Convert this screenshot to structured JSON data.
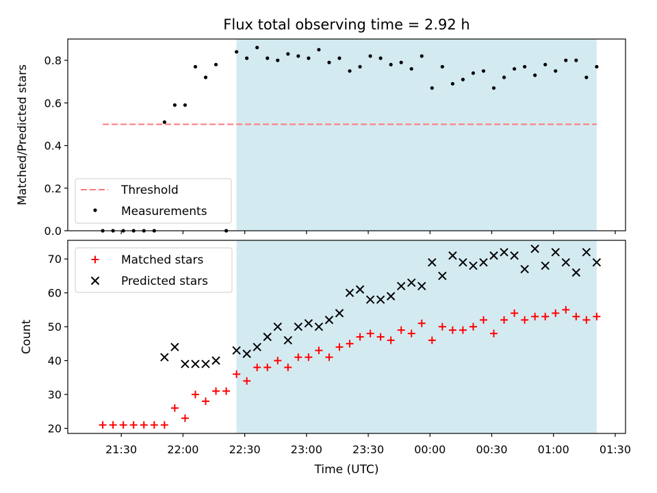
{
  "chart_data": [
    {
      "type": "scatter",
      "title": "Flux total observing time = 2.92 h",
      "ylabel": "Matched/Predicted stars",
      "xlabel": "",
      "ylim": [
        0,
        0.9
      ],
      "yticks": [
        "0.0",
        "0.2",
        "0.4",
        "0.6",
        "0.8"
      ],
      "shaded_region": {
        "x_start": "22:26",
        "x_end": "01:21",
        "color": "#d4eaf1"
      },
      "legend": {
        "placement": "lower left",
        "entries": [
          {
            "label": "Threshold",
            "style": "dashed-line",
            "color": "#ff7777"
          },
          {
            "label": "Measurements",
            "style": "dot",
            "color": "#000000"
          }
        ]
      },
      "threshold": {
        "name": "Threshold",
        "y": 0.5,
        "x_start": "21:21",
        "x_end": "01:21"
      },
      "series": [
        {
          "name": "Measurements",
          "marker": "dot",
          "color": "#000000",
          "x": [
            "21:21",
            "21:26",
            "21:31",
            "21:36",
            "21:41",
            "21:46",
            "21:51",
            "21:56",
            "22:01",
            "22:06",
            "22:11",
            "22:16",
            "22:21",
            "22:26",
            "22:31",
            "22:36",
            "22:41",
            "22:46",
            "22:51",
            "22:56",
            "23:01",
            "23:06",
            "23:11",
            "23:16",
            "23:21",
            "23:26",
            "23:31",
            "23:36",
            "23:41",
            "23:46",
            "23:51",
            "23:56",
            "00:01",
            "00:06",
            "00:11",
            "00:16",
            "00:21",
            "00:26",
            "00:31",
            "00:36",
            "00:41",
            "00:46",
            "00:51",
            "00:56",
            "01:01",
            "01:06",
            "01:11",
            "01:16",
            "01:21"
          ],
          "y": [
            0,
            0,
            0,
            0,
            0,
            0,
            0.51,
            0.59,
            0.59,
            0.77,
            0.72,
            0.78,
            0,
            0.84,
            0.81,
            0.86,
            0.81,
            0.8,
            0.83,
            0.82,
            0.81,
            0.85,
            0.79,
            0.81,
            0.75,
            0.77,
            0.82,
            0.81,
            0.78,
            0.79,
            0.76,
            0.82,
            0.67,
            0.77,
            0.69,
            0.71,
            0.74,
            0.75,
            0.67,
            0.72,
            0.76,
            0.77,
            0.73,
            0.78,
            0.75,
            0.8,
            0.8,
            0.72,
            0.77
          ]
        }
      ]
    },
    {
      "type": "scatter",
      "title": "",
      "ylabel": "Count",
      "xlabel": "Time (UTC)",
      "ylim": [
        18.5,
        75.5
      ],
      "yticks": [
        "20",
        "30",
        "40",
        "50",
        "60",
        "70"
      ],
      "xticks": [
        "21:30",
        "22:00",
        "22:30",
        "23:00",
        "23:30",
        "00:00",
        "00:30",
        "01:00",
        "01:30"
      ],
      "shaded_region": {
        "x_start": "22:26",
        "x_end": "01:21",
        "color": "#d4eaf1"
      },
      "legend": {
        "placement": "upper left",
        "entries": [
          {
            "label": "Matched stars",
            "style": "plus",
            "color": "#ff0000"
          },
          {
            "label": "Predicted stars",
            "style": "x",
            "color": "#000000"
          }
        ]
      },
      "series": [
        {
          "name": "Matched stars",
          "marker": "plus",
          "color": "#ff0000",
          "x": [
            "21:21",
            "21:26",
            "21:31",
            "21:36",
            "21:41",
            "21:46",
            "21:51",
            "21:56",
            "22:01",
            "22:06",
            "22:11",
            "22:16",
            "22:21",
            "22:26",
            "22:31",
            "22:36",
            "22:41",
            "22:46",
            "22:51",
            "22:56",
            "23:01",
            "23:06",
            "23:11",
            "23:16",
            "23:21",
            "23:26",
            "23:31",
            "23:36",
            "23:41",
            "23:46",
            "23:51",
            "23:56",
            "00:01",
            "00:06",
            "00:11",
            "00:16",
            "00:21",
            "00:26",
            "00:31",
            "00:36",
            "00:41",
            "00:46",
            "00:51",
            "00:56",
            "01:01",
            "01:06",
            "01:11",
            "01:16",
            "01:21"
          ],
          "y": [
            21,
            21,
            21,
            21,
            21,
            21,
            21,
            26,
            23,
            30,
            28,
            31,
            31,
            36,
            34,
            38,
            38,
            40,
            38,
            41,
            41,
            43,
            41,
            44,
            45,
            47,
            48,
            47,
            46,
            49,
            48,
            51,
            46,
            50,
            49,
            49,
            50,
            52,
            48,
            52,
            54,
            52,
            53,
            53,
            54,
            55,
            53,
            52,
            53
          ]
        },
        {
          "name": "Predicted stars",
          "marker": "x",
          "color": "#000000",
          "x": [
            "21:51",
            "21:56",
            "22:01",
            "22:06",
            "22:11",
            "22:16",
            "22:26",
            "22:31",
            "22:36",
            "22:41",
            "22:46",
            "22:51",
            "22:56",
            "23:01",
            "23:06",
            "23:11",
            "23:16",
            "23:21",
            "23:26",
            "23:31",
            "23:36",
            "23:41",
            "23:46",
            "23:51",
            "23:56",
            "00:01",
            "00:06",
            "00:11",
            "00:16",
            "00:21",
            "00:26",
            "00:31",
            "00:36",
            "00:41",
            "00:46",
            "00:51",
            "00:56",
            "01:01",
            "01:06",
            "01:11",
            "01:16",
            "01:21"
          ],
          "y": [
            41,
            44,
            39,
            39,
            39,
            40,
            43,
            42,
            44,
            47,
            50,
            46,
            50,
            51,
            50,
            52,
            54,
            60,
            61,
            58,
            58,
            59,
            62,
            63,
            62,
            69,
            65,
            71,
            69,
            68,
            69,
            71,
            72,
            71,
            67,
            73,
            68,
            72,
            69,
            66,
            72,
            69
          ]
        }
      ]
    }
  ]
}
